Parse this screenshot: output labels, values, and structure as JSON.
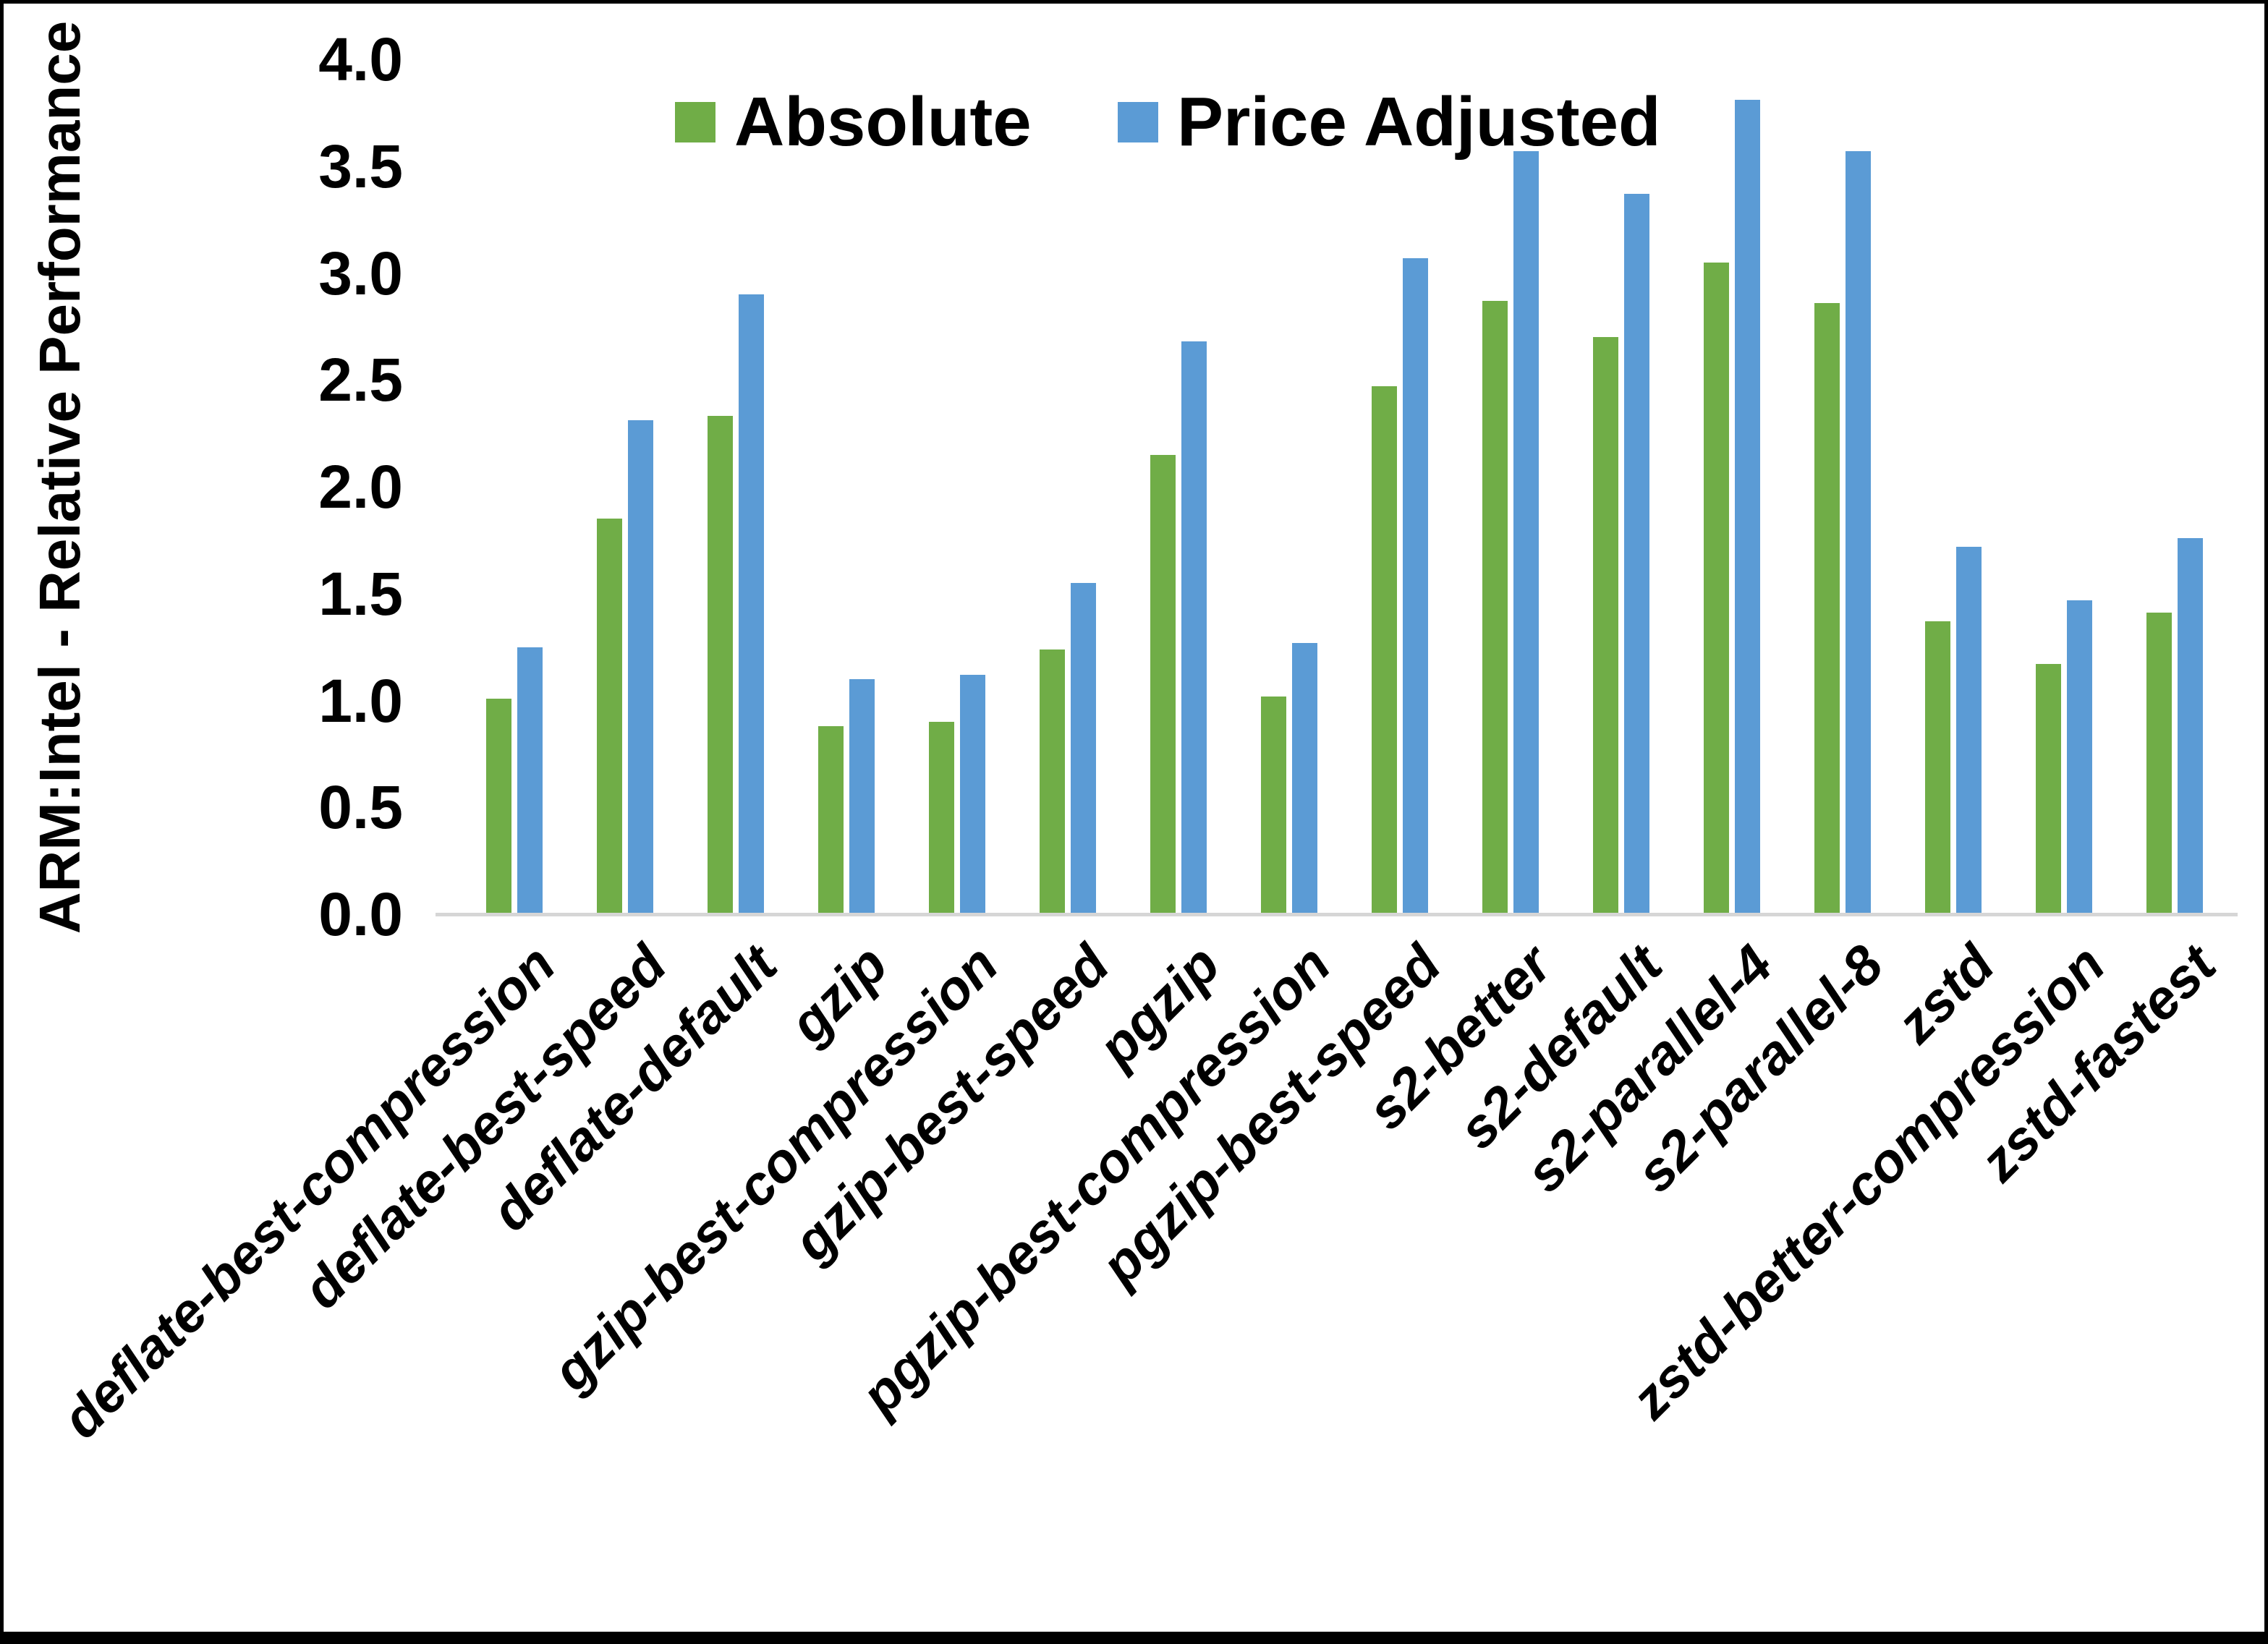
{
  "chart_data": {
    "type": "bar",
    "title": "",
    "ylabel": "ARM:Intel - Relative Performance",
    "xlabel": "",
    "ylim": [
      0.0,
      4.0
    ],
    "ytick_step": 0.5,
    "ytick_labels": [
      "4.0",
      "3.5",
      "3.0",
      "2.5",
      "2.0",
      "1.5",
      "1.0",
      "0.5",
      "0.0"
    ],
    "grid": false,
    "legend_position": "top-center",
    "categories": [
      "deflate-best-compression",
      "deflate-best-speed",
      "deflate-default",
      "gzip",
      "gzip-best-compression",
      "gzip-best-speed",
      "pgzip",
      "pgzip-best-compression",
      "pgzip-best-speed",
      "s2-better",
      "s2-default",
      "s2-parallel-4",
      "s2-parallel-8",
      "zstd",
      "zstd-better-compression",
      "zstd-fastest"
    ],
    "series": [
      {
        "name": "Absolute",
        "color": "#70AD47",
        "values": [
          1.01,
          1.85,
          2.33,
          0.88,
          0.9,
          1.24,
          2.15,
          1.02,
          2.47,
          2.87,
          2.7,
          3.05,
          2.86,
          1.37,
          1.17,
          1.41
        ]
      },
      {
        "name": "Price Adjusted",
        "color": "#5B9BD5",
        "values": [
          1.25,
          2.31,
          2.9,
          1.1,
          1.12,
          1.55,
          2.68,
          1.27,
          3.07,
          3.57,
          3.37,
          3.81,
          3.57,
          1.72,
          1.47,
          1.76
        ]
      }
    ],
    "colors": {
      "axis_line": "#d6d6d6",
      "text": "#000000",
      "background": "#ffffff",
      "frame": "#000000"
    }
  }
}
